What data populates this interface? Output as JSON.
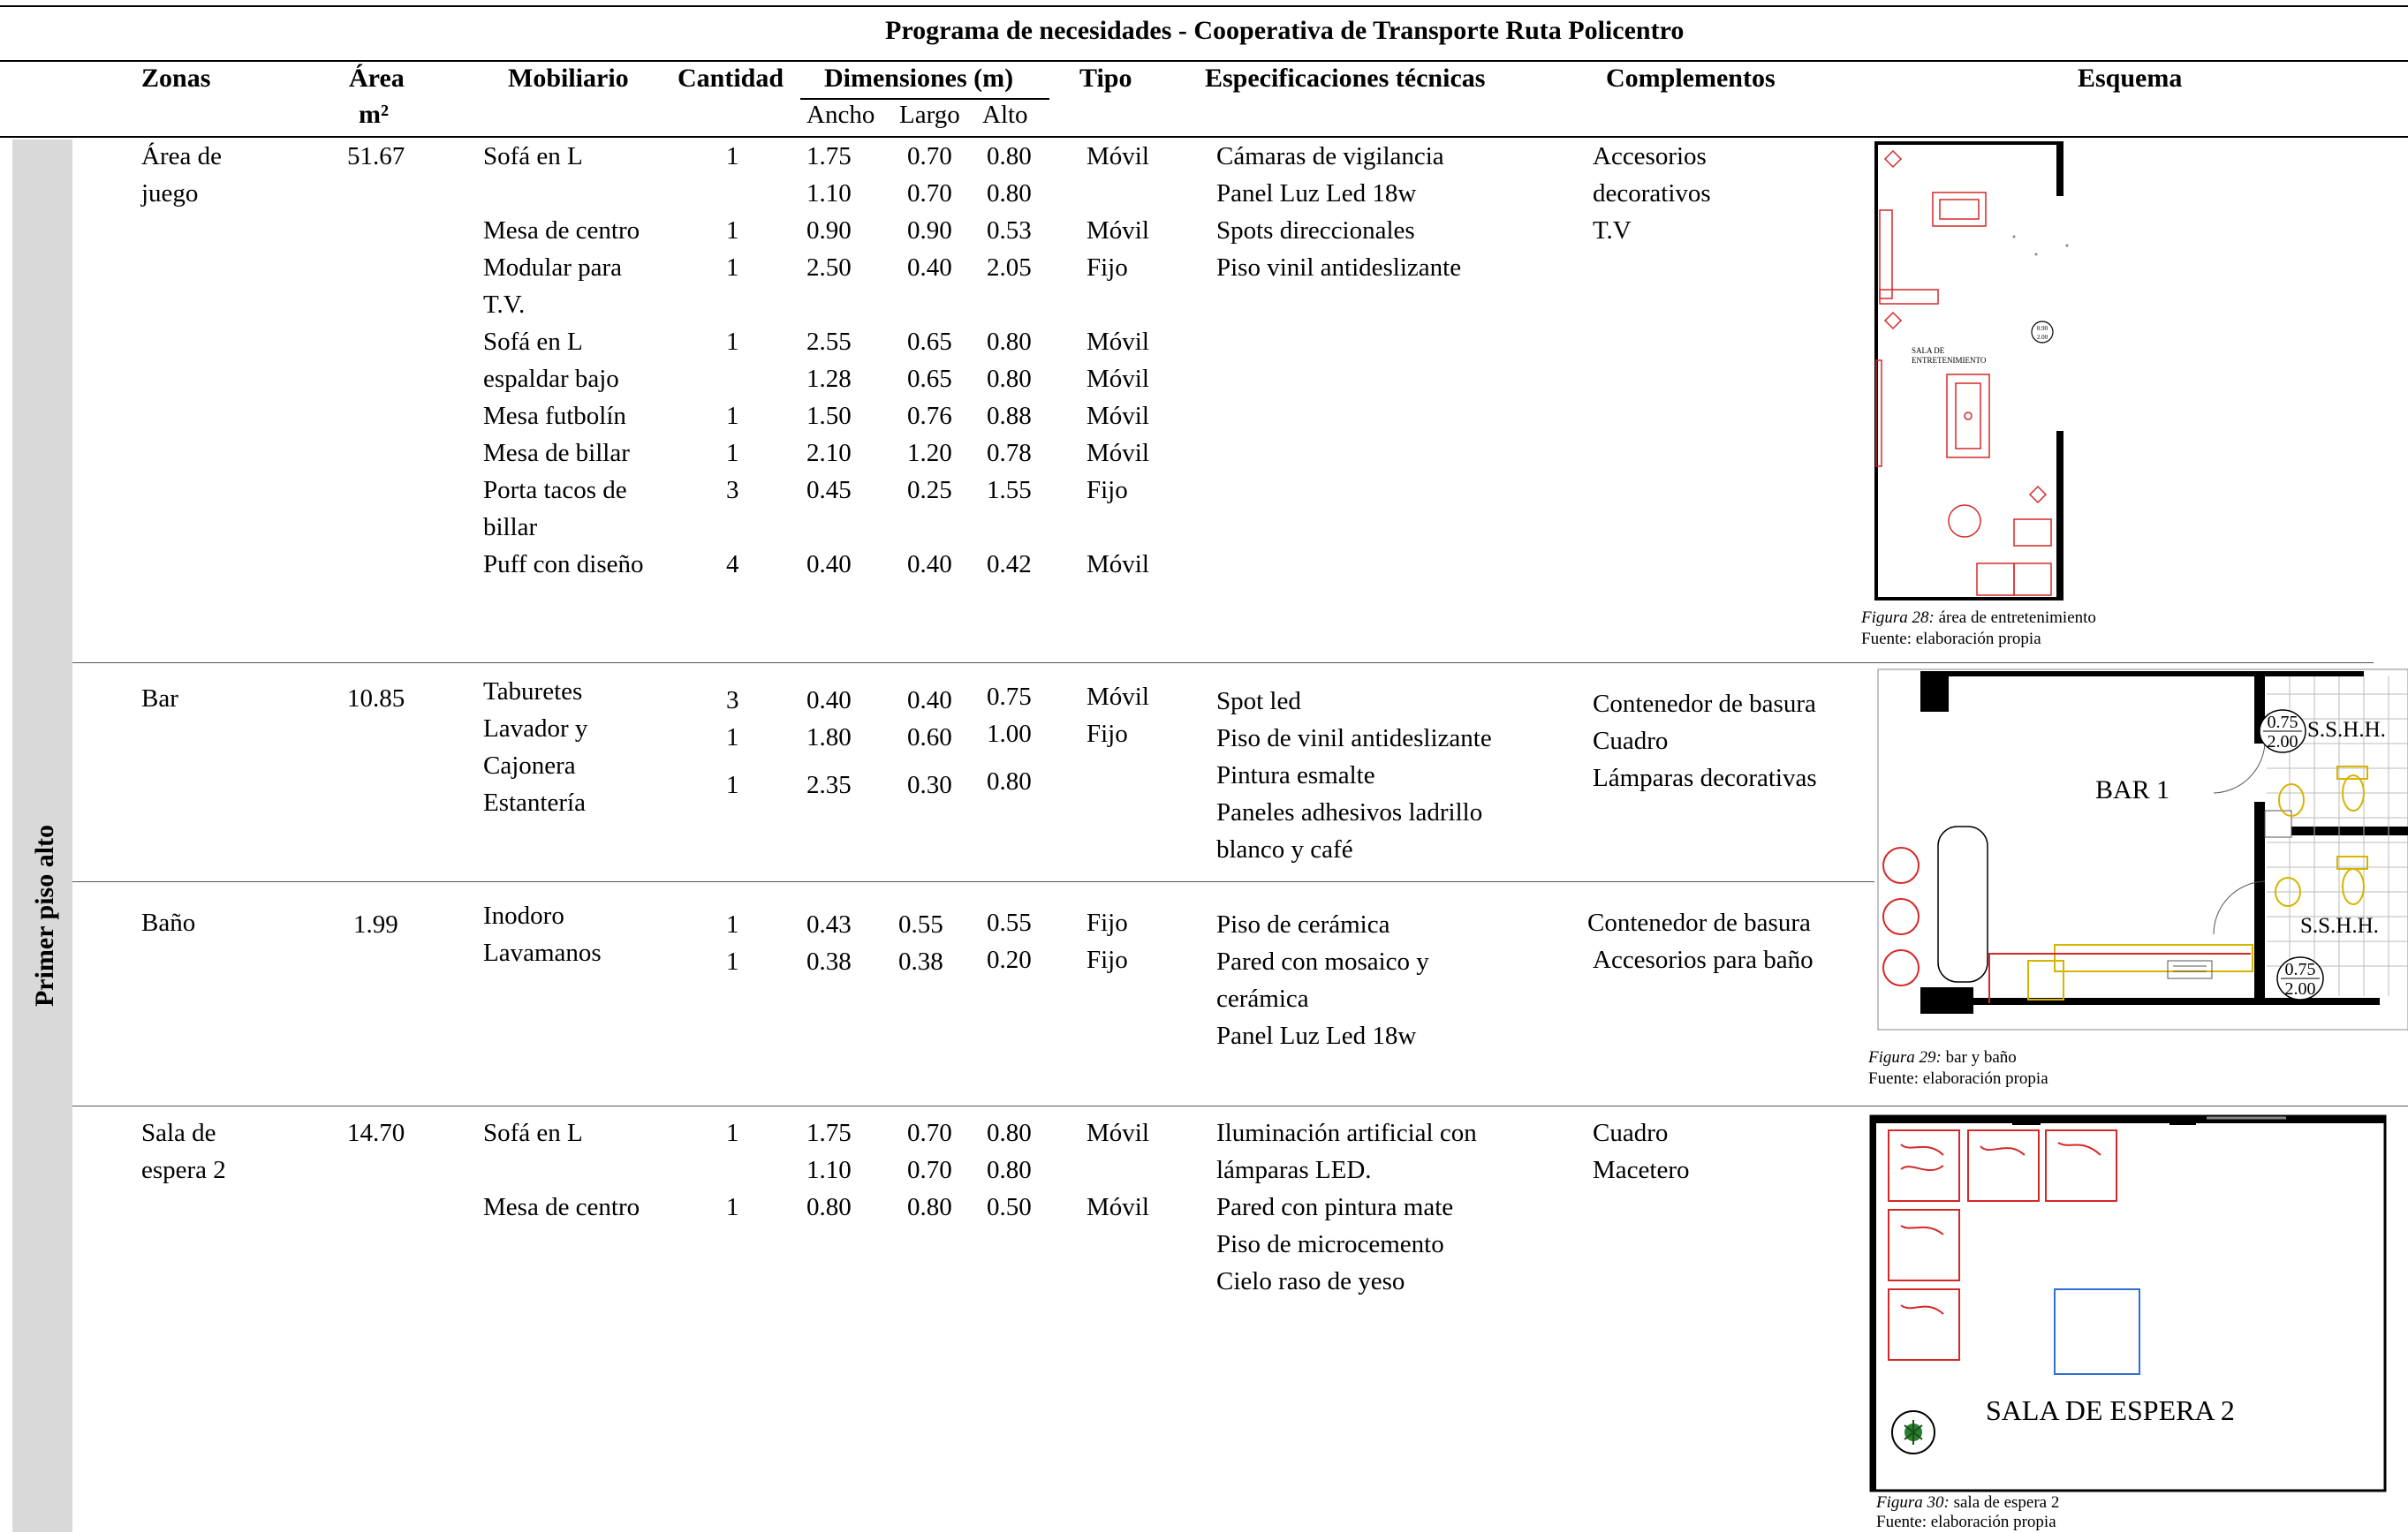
{
  "title": "Programa de necesidades - Cooperativa de Transporte Ruta Policentro",
  "headers": {
    "zonas": "Zonas",
    "area": "Área",
    "area_unit": "m²",
    "mobiliario": "Mobiliario",
    "cantidad": "Cantidad",
    "dimensiones": "Dimensiones (m)",
    "ancho": "Ancho",
    "largo": "Largo",
    "alto": "Alto",
    "tipo": "Tipo",
    "especificaciones": "Especificaciones técnicas",
    "complementos": "Complementos",
    "esquema": "Esquema"
  },
  "floor_label": "Primer piso alto",
  "sections": [
    {
      "zona": [
        "Área de",
        "juego"
      ],
      "area": "51.67",
      "rows": [
        {
          "mob": "Sofá en L",
          "cant": "1",
          "ancho": "1.75",
          "largo": "0.70",
          "alto": "0.80",
          "tipo": "Móvil"
        },
        {
          "mob": "",
          "cant": "",
          "ancho": "1.10",
          "largo": "0.70",
          "alto": "0.80",
          "tipo": ""
        },
        {
          "mob": "Mesa de centro",
          "cant": "1",
          "ancho": "0.90",
          "largo": "0.90",
          "alto": "0.53",
          "tipo": "Móvil"
        },
        {
          "mob": "Modular para",
          "cant": "1",
          "ancho": "2.50",
          "largo": "0.40",
          "alto": "2.05",
          "tipo": "Fijo"
        },
        {
          "mob": "T.V.",
          "cant": "",
          "ancho": "",
          "largo": "",
          "alto": "",
          "tipo": ""
        },
        {
          "mob": "Sofá en L",
          "cant": "1",
          "ancho": "2.55",
          "largo": "0.65",
          "alto": "0.80",
          "tipo": "Móvil"
        },
        {
          "mob": "espaldar bajo",
          "cant": "",
          "ancho": "1.28",
          "largo": "0.65",
          "alto": "0.80",
          "tipo": "Móvil"
        },
        {
          "mob": "Mesa futbolín",
          "cant": "1",
          "ancho": "1.50",
          "largo": "0.76",
          "alto": "0.88",
          "tipo": "Móvil"
        },
        {
          "mob": "Mesa de billar",
          "cant": "1",
          "ancho": "2.10",
          "largo": "1.20",
          "alto": "0.78",
          "tipo": "Móvil"
        },
        {
          "mob": "Porta tacos de",
          "cant": "3",
          "ancho": "0.45",
          "largo": "0.25",
          "alto": "1.55",
          "tipo": "Fijo"
        },
        {
          "mob": "billar",
          "cant": "",
          "ancho": "",
          "largo": "",
          "alto": "",
          "tipo": ""
        },
        {
          "mob": "Puff con diseño",
          "cant": "4",
          "ancho": "0.40",
          "largo": "0.40",
          "alto": "0.42",
          "tipo": "Móvil"
        }
      ],
      "specs": [
        "Cámaras de vigilancia",
        "Panel Luz Led 18w",
        "Spots direccionales",
        "Piso vinil antideslizante"
      ],
      "complementos": [
        "Accesorios",
        "decorativos",
        "T.V"
      ],
      "plan_label": [
        "SALA DE",
        "ENTRETENIMIENTO"
      ],
      "plan_tags": [
        "0.90",
        "2.00"
      ],
      "caption_fig": "Figura 28:",
      "caption_text": "área de entretenimiento",
      "caption_source": "Fuente: elaboración propia"
    },
    {
      "zona": [
        "Bar"
      ],
      "area": "10.85",
      "rows": [
        {
          "mob": "Taburetes",
          "cant": "3",
          "ancho": "0.40",
          "largo": "0.40",
          "alto": "0.75",
          "tipo": "Móvil"
        },
        {
          "mob": "Lavador y",
          "cant": "1",
          "ancho": "1.80",
          "largo": "0.60",
          "alto": "1.00",
          "tipo": "Fijo"
        },
        {
          "mob": "Cajonera",
          "cant": "",
          "ancho": "",
          "largo": "",
          "alto": "",
          "tipo": ""
        },
        {
          "mob": "Estantería",
          "cant": "1",
          "ancho": "2.35",
          "largo": "0.30",
          "alto": "0.80",
          "tipo": ""
        }
      ],
      "specs": [
        "Spot led",
        "Piso de vinil antideslizante",
        "Pintura esmalte",
        "Paneles adhesivos ladrillo",
        "blanco y café"
      ],
      "complementos": [
        "Contenedor de basura",
        "Cuadro",
        "Lámparas decorativas"
      ],
      "plan_label": "BAR 1",
      "plan_tags": [
        "S.S.H.H.",
        "S.S.H.H.",
        "0.75",
        "2.00",
        "0.75",
        "2.00"
      ]
    },
    {
      "zona": [
        "Baño"
      ],
      "area": "1.99",
      "rows": [
        {
          "mob": "Inodoro",
          "cant": "1",
          "ancho": "0.43",
          "largo": "0.55",
          "alto": "0.55",
          "tipo": "Fijo"
        },
        {
          "mob": "Lavamanos",
          "cant": "1",
          "ancho": "0.38",
          "largo": "0.38",
          "alto": "0.20",
          "tipo": "Fijo"
        }
      ],
      "specs": [
        "Piso de cerámica",
        "Pared con mosaico y",
        "cerámica",
        "Panel Luz Led 18w"
      ],
      "complementos": [
        "Contenedor de basura",
        "Accesorios para baño"
      ],
      "caption_fig": "Figura 29:",
      "caption_text": "bar y baño",
      "caption_source": "Fuente: elaboración propia"
    },
    {
      "zona": [
        "Sala de",
        "espera 2"
      ],
      "area": "14.70",
      "rows": [
        {
          "mob": "Sofá en L",
          "cant": "1",
          "ancho": "1.75",
          "largo": "0.70",
          "alto": "0.80",
          "tipo": "Móvil"
        },
        {
          "mob": "",
          "cant": "",
          "ancho": "1.10",
          "largo": "0.70",
          "alto": "0.80",
          "tipo": ""
        },
        {
          "mob": "Mesa de centro",
          "cant": "1",
          "ancho": "0.80",
          "largo": "0.80",
          "alto": "0.50",
          "tipo": "Móvil"
        }
      ],
      "specs": [
        "Iluminación artificial con",
        "lámparas LED.",
        "Pared con pintura mate",
        "Piso de microcemento",
        "Cielo raso de yeso"
      ],
      "complementos": [
        "Cuadro",
        "Macetero"
      ],
      "plan_label": "SALA DE ESPERA 2",
      "caption_fig": "Figura 30:",
      "caption_text": "sala de espera 2",
      "caption_source": "Fuente: elaboración propia"
    }
  ]
}
